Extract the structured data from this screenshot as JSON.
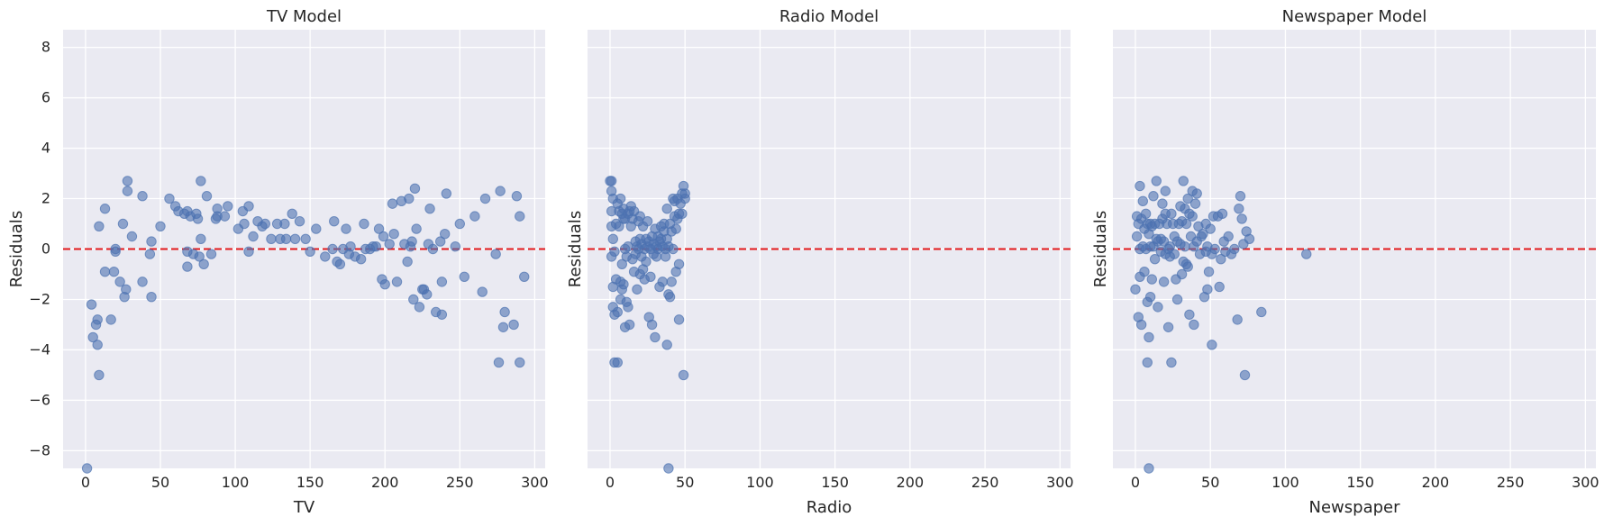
{
  "chart_data": [
    {
      "type": "scatter",
      "title": "TV Model",
      "xlabel": "TV",
      "ylabel": "Residuals",
      "xlim": [
        -15,
        307
      ],
      "ylim": [
        -8.7,
        8.7
      ],
      "xticks": [
        0,
        50,
        100,
        150,
        200,
        250,
        300
      ],
      "yticks": [
        -8,
        -6,
        -4,
        -2,
        0,
        2,
        4,
        6,
        8
      ],
      "grid": true,
      "reference_line": {
        "y": 0,
        "color": "#e31a1c",
        "style": "dashed"
      },
      "points": [
        [
          1,
          -8.7
        ],
        [
          4,
          -2.2
        ],
        [
          5,
          -3.5
        ],
        [
          7,
          -3.0
        ],
        [
          8,
          -3.8
        ],
        [
          8,
          -2.8
        ],
        [
          9,
          -5.0
        ],
        [
          9,
          0.9
        ],
        [
          13,
          -0.9
        ],
        [
          13,
          1.6
        ],
        [
          17,
          -2.8
        ],
        [
          19,
          -0.9
        ],
        [
          20,
          -0.1
        ],
        [
          20,
          0.0
        ],
        [
          23,
          -1.3
        ],
        [
          25,
          1.0
        ],
        [
          26,
          -1.9
        ],
        [
          27,
          -1.6
        ],
        [
          28,
          2.3
        ],
        [
          28,
          2.7
        ],
        [
          31,
          0.5
        ],
        [
          38,
          2.1
        ],
        [
          38,
          -1.3
        ],
        [
          43,
          -0.2
        ],
        [
          44,
          0.3
        ],
        [
          44,
          -1.9
        ],
        [
          50,
          0.9
        ],
        [
          56,
          2.0
        ],
        [
          60,
          1.7
        ],
        [
          62,
          1.5
        ],
        [
          66,
          1.4
        ],
        [
          68,
          1.5
        ],
        [
          68,
          -0.1
        ],
        [
          68,
          -0.7
        ],
        [
          70,
          1.3
        ],
        [
          72,
          -0.2
        ],
        [
          74,
          1.4
        ],
        [
          75,
          1.2
        ],
        [
          76,
          -0.3
        ],
        [
          77,
          0.4
        ],
        [
          77,
          2.7
        ],
        [
          79,
          -0.6
        ],
        [
          81,
          2.1
        ],
        [
          84,
          -0.2
        ],
        [
          87,
          1.2
        ],
        [
          88,
          1.6
        ],
        [
          88,
          1.3
        ],
        [
          93,
          1.3
        ],
        [
          95,
          1.7
        ],
        [
          102,
          0.8
        ],
        [
          105,
          1.5
        ],
        [
          106,
          1.0
        ],
        [
          109,
          1.7
        ],
        [
          109,
          -0.1
        ],
        [
          112,
          0.5
        ],
        [
          115,
          1.1
        ],
        [
          118,
          0.9
        ],
        [
          120,
          1.0
        ],
        [
          124,
          0.4
        ],
        [
          128,
          1.0
        ],
        [
          130,
          0.4
        ],
        [
          133,
          1.0
        ],
        [
          134,
          0.4
        ],
        [
          138,
          1.4
        ],
        [
          140,
          0.4
        ],
        [
          143,
          1.1
        ],
        [
          147,
          0.4
        ],
        [
          150,
          -0.1
        ],
        [
          154,
          0.8
        ],
        [
          160,
          -0.3
        ],
        [
          165,
          0.0
        ],
        [
          166,
          1.1
        ],
        [
          168,
          -0.5
        ],
        [
          170,
          -0.6
        ],
        [
          172,
          0.0
        ],
        [
          174,
          0.8
        ],
        [
          176,
          -0.2
        ],
        [
          177,
          0.1
        ],
        [
          180,
          -0.3
        ],
        [
          184,
          -0.4
        ],
        [
          186,
          1.0
        ],
        [
          187,
          0.0
        ],
        [
          190,
          0.0
        ],
        [
          192,
          0.1
        ],
        [
          194,
          0.1
        ],
        [
          196,
          0.8
        ],
        [
          198,
          -1.2
        ],
        [
          199,
          0.5
        ],
        [
          200,
          -1.4
        ],
        [
          203,
          0.2
        ],
        [
          205,
          1.8
        ],
        [
          206,
          0.6
        ],
        [
          208,
          -1.3
        ],
        [
          211,
          1.9
        ],
        [
          213,
          0.2
        ],
        [
          215,
          -0.5
        ],
        [
          216,
          2.0
        ],
        [
          217,
          0.1
        ],
        [
          218,
          0.3
        ],
        [
          219,
          -2.0
        ],
        [
          220,
          2.4
        ],
        [
          221,
          0.8
        ],
        [
          223,
          -2.3
        ],
        [
          225,
          -1.6
        ],
        [
          226,
          -1.6
        ],
        [
          228,
          -1.8
        ],
        [
          229,
          0.2
        ],
        [
          230,
          1.6
        ],
        [
          232,
          0.0
        ],
        [
          234,
          -2.5
        ],
        [
          237,
          0.3
        ],
        [
          238,
          -1.3
        ],
        [
          238,
          -2.6
        ],
        [
          240,
          0.6
        ],
        [
          241,
          2.2
        ],
        [
          247,
          0.1
        ],
        [
          250,
          1.0
        ],
        [
          253,
          -1.1
        ],
        [
          260,
          1.3
        ],
        [
          265,
          -1.7
        ],
        [
          267,
          2.0
        ],
        [
          274,
          -0.2
        ],
        [
          276,
          -4.5
        ],
        [
          277,
          2.3
        ],
        [
          279,
          -3.1
        ],
        [
          280,
          -2.5
        ],
        [
          286,
          -3.0
        ],
        [
          288,
          2.1
        ],
        [
          290,
          1.3
        ],
        [
          290,
          -4.5
        ],
        [
          293,
          -1.1
        ]
      ]
    },
    {
      "type": "scatter",
      "title": "Radio Model",
      "xlabel": "Radio",
      "ylabel": "Residuals",
      "xlim": [
        -15,
        307
      ],
      "ylim": [
        -8.7,
        8.7
      ],
      "xticks": [
        0,
        50,
        100,
        150,
        200,
        250,
        300
      ],
      "yticks": [
        -8,
        -6,
        -4,
        -2,
        0,
        2,
        4,
        6,
        8
      ],
      "grid": true,
      "reference_line": {
        "y": 0,
        "color": "#e31a1c",
        "style": "dashed"
      },
      "points": [
        [
          0,
          2.7
        ],
        [
          1,
          2.7
        ],
        [
          1,
          2.3
        ],
        [
          1,
          1.5
        ],
        [
          1,
          0.9
        ],
        [
          1,
          -0.3
        ],
        [
          2,
          2.0
        ],
        [
          2,
          0.4
        ],
        [
          2,
          -1.5
        ],
        [
          2,
          -2.3
        ],
        [
          3,
          -4.5
        ],
        [
          3,
          -2.6
        ],
        [
          3,
          -0.1
        ],
        [
          4,
          1.0
        ],
        [
          4,
          -1.2
        ],
        [
          5,
          1.8
        ],
        [
          5,
          -4.5
        ],
        [
          5,
          -2.5
        ],
        [
          6,
          1.5
        ],
        [
          6,
          0.9
        ],
        [
          7,
          2.0
        ],
        [
          7,
          -1.3
        ],
        [
          7,
          -2.0
        ],
        [
          8,
          1.4
        ],
        [
          8,
          -1.6
        ],
        [
          8,
          -0.6
        ],
        [
          9,
          1.6
        ],
        [
          9,
          1.2
        ],
        [
          9,
          -1.4
        ],
        [
          10,
          1.2
        ],
        [
          10,
          0.0
        ],
        [
          10,
          -3.1
        ],
        [
          11,
          -2.1
        ],
        [
          11,
          -0.3
        ],
        [
          12,
          1.4
        ],
        [
          12,
          0.1
        ],
        [
          12,
          -2.3
        ],
        [
          13,
          1.5
        ],
        [
          13,
          -3.0
        ],
        [
          14,
          1.7
        ],
        [
          14,
          0.9
        ],
        [
          15,
          1.2
        ],
        [
          15,
          -0.4
        ],
        [
          16,
          1.5
        ],
        [
          16,
          -0.9
        ],
        [
          17,
          0.3
        ],
        [
          17,
          -0.2
        ],
        [
          18,
          -1.6
        ],
        [
          18,
          0.1
        ],
        [
          19,
          0.0
        ],
        [
          19,
          1.1
        ],
        [
          20,
          1.3
        ],
        [
          20,
          0.4
        ],
        [
          20,
          -1.0
        ],
        [
          21,
          0.2
        ],
        [
          21,
          -0.3
        ],
        [
          22,
          0.9
        ],
        [
          22,
          -0.8
        ],
        [
          23,
          0.0
        ],
        [
          23,
          -1.2
        ],
        [
          24,
          -0.5
        ],
        [
          24,
          0.4
        ],
        [
          25,
          1.1
        ],
        [
          25,
          0.1
        ],
        [
          26,
          0.3
        ],
        [
          26,
          -2.7
        ],
        [
          27,
          0.0
        ],
        [
          27,
          -1.1
        ],
        [
          28,
          0.5
        ],
        [
          28,
          -3.0
        ],
        [
          29,
          0.2
        ],
        [
          29,
          -0.2
        ],
        [
          30,
          -3.5
        ],
        [
          30,
          0.8
        ],
        [
          31,
          0.1
        ],
        [
          31,
          -0.3
        ],
        [
          32,
          0.5
        ],
        [
          32,
          0.0
        ],
        [
          33,
          0.3
        ],
        [
          33,
          -1.5
        ],
        [
          34,
          0.9
        ],
        [
          34,
          0.4
        ],
        [
          35,
          -1.3
        ],
        [
          35,
          0.1
        ],
        [
          36,
          1.0
        ],
        [
          36,
          0.7
        ],
        [
          37,
          0.0
        ],
        [
          37,
          -0.3
        ],
        [
          38,
          1.6
        ],
        [
          38,
          0.4
        ],
        [
          38,
          -3.8
        ],
        [
          39,
          0.1
        ],
        [
          39,
          -1.8
        ],
        [
          39,
          -8.7
        ],
        [
          40,
          1.0
        ],
        [
          40,
          -1.9
        ],
        [
          41,
          0.7
        ],
        [
          41,
          -1.3
        ],
        [
          42,
          2.0
        ],
        [
          42,
          0.0
        ],
        [
          43,
          1.3
        ],
        [
          43,
          1.9
        ],
        [
          44,
          0.8
        ],
        [
          44,
          -0.9
        ],
        [
          45,
          1.2
        ],
        [
          45,
          2.0
        ],
        [
          46,
          1.4
        ],
        [
          46,
          -2.8
        ],
        [
          46,
          -0.6
        ],
        [
          47,
          1.8
        ],
        [
          48,
          2.2
        ],
        [
          48,
          1.4
        ],
        [
          49,
          2.5
        ],
        [
          49,
          -5.0
        ],
        [
          50,
          2.2
        ],
        [
          50,
          2.0
        ]
      ]
    },
    {
      "type": "scatter",
      "title": "Newspaper Model",
      "xlabel": "Newspaper",
      "ylabel": "Residuals",
      "xlim": [
        -15,
        307
      ],
      "ylim": [
        -8.7,
        8.7
      ],
      "xticks": [
        0,
        50,
        100,
        150,
        200,
        250,
        300
      ],
      "yticks": [
        -8,
        -6,
        -4,
        -2,
        0,
        2,
        4,
        6,
        8
      ],
      "grid": true,
      "reference_line": {
        "y": 0,
        "color": "#e31a1c",
        "style": "dashed"
      },
      "points": [
        [
          0,
          -1.6
        ],
        [
          1,
          1.3
        ],
        [
          1,
          0.5
        ],
        [
          2,
          1.0
        ],
        [
          2,
          -2.7
        ],
        [
          3,
          2.5
        ],
        [
          3,
          -1.1
        ],
        [
          3,
          0.0
        ],
        [
          4,
          1.2
        ],
        [
          4,
          -3.0
        ],
        [
          5,
          1.9
        ],
        [
          5,
          0.1
        ],
        [
          6,
          -0.9
        ],
        [
          6,
          0.8
        ],
        [
          7,
          1.4
        ],
        [
          7,
          0.0
        ],
        [
          8,
          -4.5
        ],
        [
          8,
          -2.1
        ],
        [
          8,
          1.0
        ],
        [
          9,
          -8.7
        ],
        [
          9,
          0.6
        ],
        [
          9,
          -3.5
        ],
        [
          10,
          1.0
        ],
        [
          10,
          0.1
        ],
        [
          10,
          -1.9
        ],
        [
          11,
          -1.2
        ],
        [
          11,
          0.9
        ],
        [
          12,
          2.1
        ],
        [
          12,
          0.1
        ],
        [
          13,
          -0.4
        ],
        [
          13,
          1.0
        ],
        [
          14,
          2.7
        ],
        [
          14,
          0.4
        ],
        [
          15,
          -2.3
        ],
        [
          15,
          0.3
        ],
        [
          16,
          1.0
        ],
        [
          17,
          -0.1
        ],
        [
          17,
          0.4
        ],
        [
          18,
          1.8
        ],
        [
          18,
          1.2
        ],
        [
          19,
          -1.3
        ],
        [
          19,
          0.3
        ],
        [
          20,
          1.4
        ],
        [
          20,
          2.3
        ],
        [
          20,
          -0.2
        ],
        [
          21,
          1.0
        ],
        [
          22,
          -3.1
        ],
        [
          22,
          0.0
        ],
        [
          23,
          0.1
        ],
        [
          23,
          -0.3
        ],
        [
          24,
          -4.5
        ],
        [
          24,
          1.4
        ],
        [
          25,
          1.0
        ],
        [
          26,
          0.5
        ],
        [
          26,
          -0.2
        ],
        [
          27,
          -1.2
        ],
        [
          28,
          -2.0
        ],
        [
          28,
          0.3
        ],
        [
          29,
          1.0
        ],
        [
          30,
          1.7
        ],
        [
          30,
          0.2
        ],
        [
          31,
          1.1
        ],
        [
          31,
          -1.0
        ],
        [
          32,
          2.7
        ],
        [
          32,
          -0.5
        ],
        [
          33,
          1.6
        ],
        [
          33,
          0.1
        ],
        [
          34,
          1.0
        ],
        [
          34,
          -0.6
        ],
        [
          35,
          2.0
        ],
        [
          35,
          -0.7
        ],
        [
          36,
          1.4
        ],
        [
          36,
          -2.6
        ],
        [
          37,
          0.5
        ],
        [
          38,
          1.3
        ],
        [
          38,
          2.3
        ],
        [
          39,
          0.1
        ],
        [
          39,
          -3.0
        ],
        [
          40,
          1.8
        ],
        [
          41,
          2.2
        ],
        [
          41,
          0.3
        ],
        [
          42,
          0.9
        ],
        [
          43,
          -0.2
        ],
        [
          44,
          0.5
        ],
        [
          45,
          0.6
        ],
        [
          46,
          -1.9
        ],
        [
          47,
          -0.1
        ],
        [
          47,
          1.0
        ],
        [
          48,
          0.1
        ],
        [
          48,
          -1.6
        ],
        [
          49,
          -0.9
        ],
        [
          50,
          0.8
        ],
        [
          51,
          -0.2
        ],
        [
          51,
          -3.8
        ],
        [
          52,
          1.3
        ],
        [
          53,
          0.0
        ],
        [
          55,
          1.3
        ],
        [
          56,
          -1.5
        ],
        [
          57,
          -0.4
        ],
        [
          58,
          1.4
        ],
        [
          59,
          0.3
        ],
        [
          60,
          -0.1
        ],
        [
          62,
          0.5
        ],
        [
          64,
          -0.2
        ],
        [
          66,
          0.0
        ],
        [
          68,
          -2.8
        ],
        [
          69,
          1.6
        ],
        [
          70,
          2.1
        ],
        [
          71,
          1.2
        ],
        [
          72,
          0.2
        ],
        [
          73,
          -5.0
        ],
        [
          74,
          0.7
        ],
        [
          76,
          0.4
        ],
        [
          84,
          -2.5
        ],
        [
          114,
          -0.2
        ]
      ]
    }
  ]
}
